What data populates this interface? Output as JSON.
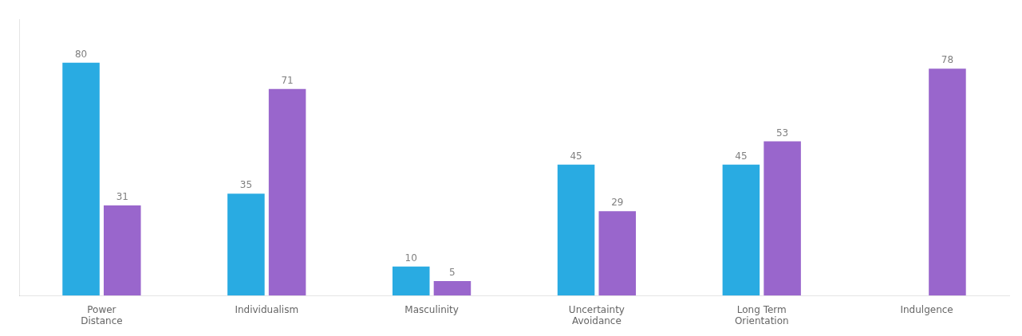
{
  "chart_data": {
    "type": "bar",
    "categories": [
      "Power\nDistance",
      "Individualism",
      "Masculinity",
      "Uncertainty\nAvoidance",
      "Long Term\nOrientation",
      "Indulgence"
    ],
    "series": [
      {
        "color": "#29ABE2",
        "values": [
          80,
          35,
          10,
          45,
          45,
          0
        ],
        "value_labels": [
          "80",
          "35",
          "10",
          "45",
          "45",
          null
        ]
      },
      {
        "color": "#9966CC",
        "values": [
          31,
          71,
          5,
          29,
          53,
          78
        ],
        "value_labels": [
          "31",
          "71",
          "5",
          "29",
          "53",
          "78"
        ]
      }
    ],
    "ylim": [
      0,
      95
    ],
    "grid": false,
    "data_labels": true,
    "tick_labels": "x"
  }
}
